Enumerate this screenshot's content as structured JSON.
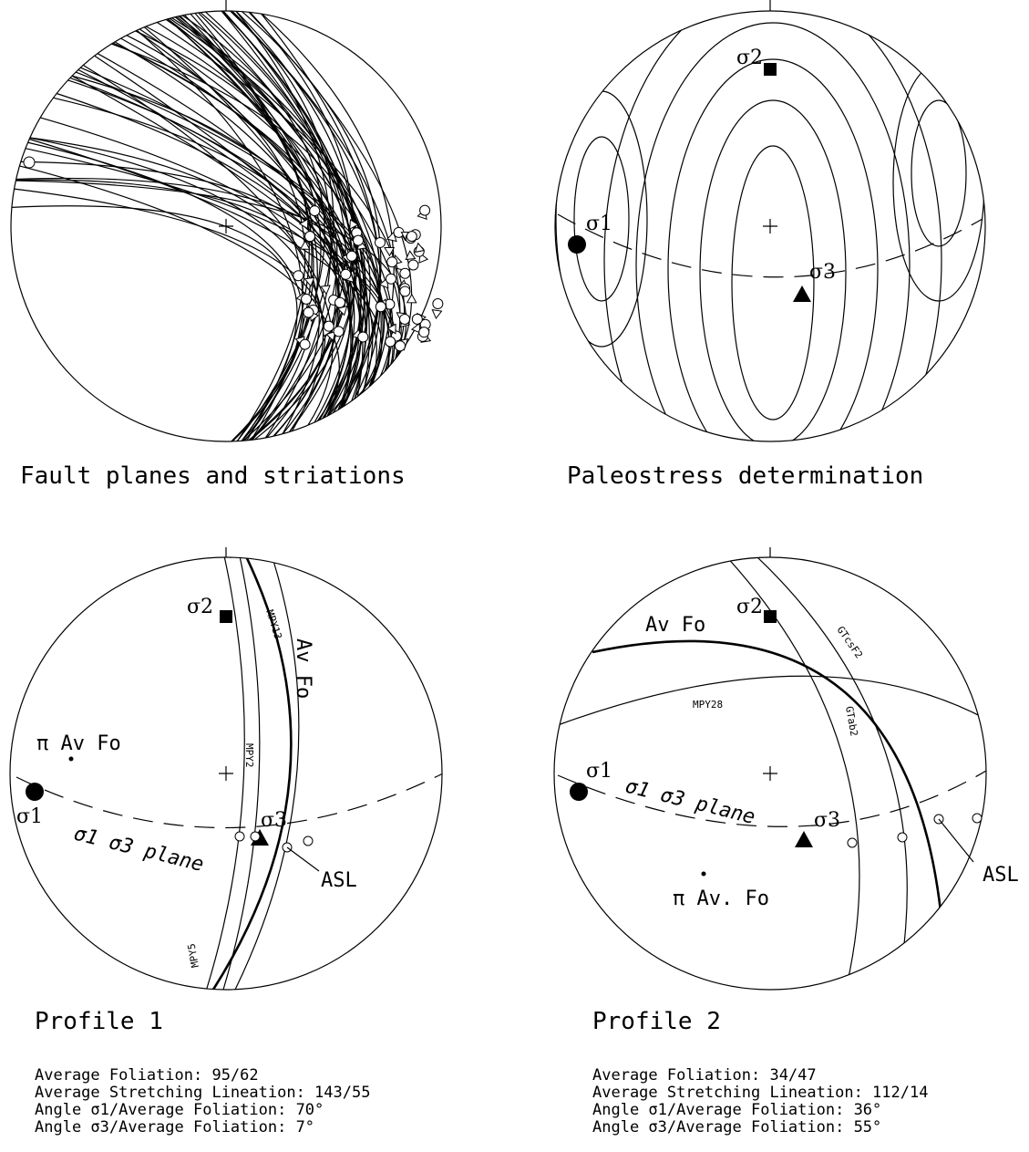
{
  "panels": [
    {
      "caption": "Fault planes and striations"
    },
    {
      "caption": "Paleostress determination",
      "labels": {
        "s2": "σ2",
        "s1": "σ1",
        "s3": "σ3"
      }
    },
    {
      "caption": "Profile 1",
      "labels": {
        "s2": "σ2",
        "s1": "σ1",
        "s3": "σ3",
        "pole": "π Av Fo",
        "plane": "σ1 σ3 plane",
        "avfo": "Av Fo",
        "asl": "ASL",
        "a": "MPY13",
        "b": "MPY2",
        "c": "MPY5"
      },
      "stats": [
        "Average Foliation: 95/62",
        "Average Stretching Lineation: 143/55",
        "Angle σ1/Average Foliation: 70°",
        "Angle σ3/Average Foliation: 7°"
      ]
    },
    {
      "caption": "Profile 2",
      "labels": {
        "s2": "σ2",
        "s1": "σ1",
        "s3": "σ3",
        "pole": "π Av. Fo",
        "plane": "σ1 σ3 plane",
        "avfo": "Av Fo",
        "asl": "ASL",
        "a": "GTcsF2",
        "b": "MPY28",
        "c": "GTab2"
      },
      "stats": [
        "Average Foliation: 34/47",
        "Average Stretching Lineation: 112/14",
        "Angle σ1/Average Foliation: 36°",
        "Angle σ3/Average Foliation: 55°"
      ]
    }
  ]
}
